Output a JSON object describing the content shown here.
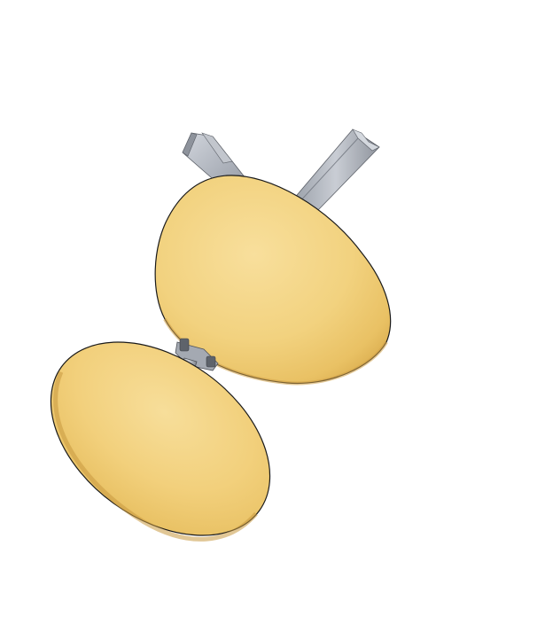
{
  "scene": {
    "subject": "chair-seat-and-backrest-render",
    "colors": {
      "background": "#ffffff",
      "pad_light": "#f6dc96",
      "pad_base": "#efc96f",
      "pad_shadow": "#d9ad4e",
      "pad_edge": "#1a1a1a",
      "frame_light": "#d2d6dd",
      "frame_base": "#aeb3bc",
      "frame_dark": "#7c818a",
      "bolt": "#5e636b"
    },
    "parts": [
      "backrest-pad",
      "seat-pad",
      "metal-frame-bar",
      "metal-support-bar",
      "stem-post",
      "mounting-bracket"
    ]
  }
}
